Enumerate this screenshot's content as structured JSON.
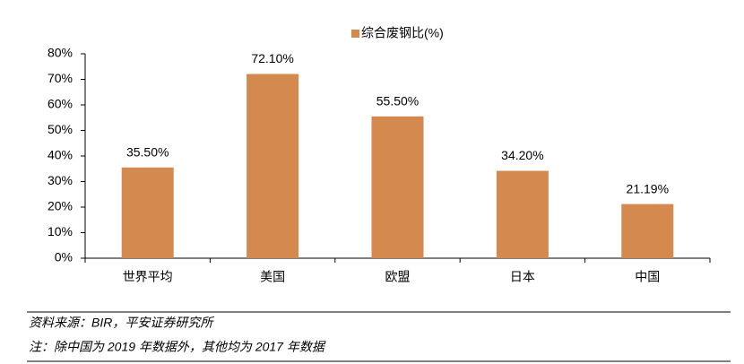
{
  "chart_data": {
    "type": "bar",
    "categories": [
      "世界平均",
      "美国",
      "欧盟",
      "日本",
      "中国"
    ],
    "series": [
      {
        "name": "综合废钢比(%)",
        "color": "#d4894f",
        "values": [
          35.5,
          72.1,
          55.5,
          34.2,
          21.19
        ],
        "value_labels": [
          "35.50%",
          "72.10%",
          "55.50%",
          "34.20%",
          "21.19%"
        ]
      }
    ],
    "ylim": [
      0,
      80
    ],
    "yticks": [
      {
        "value": 0,
        "label": "0%"
      },
      {
        "value": 10,
        "label": "10%"
      },
      {
        "value": 20,
        "label": "20%"
      },
      {
        "value": 30,
        "label": "30%"
      },
      {
        "value": 40,
        "label": "40%"
      },
      {
        "value": 50,
        "label": "50%"
      },
      {
        "value": 60,
        "label": "60%"
      },
      {
        "value": 70,
        "label": "70%"
      },
      {
        "value": 80,
        "label": "80%"
      }
    ],
    "grid": false,
    "legend": "top"
  },
  "footer": {
    "source": "资料来源：BIR，平安证券研究所",
    "note": "注：除中国为 2019 年数据外，其他均为 2017 年数据"
  }
}
